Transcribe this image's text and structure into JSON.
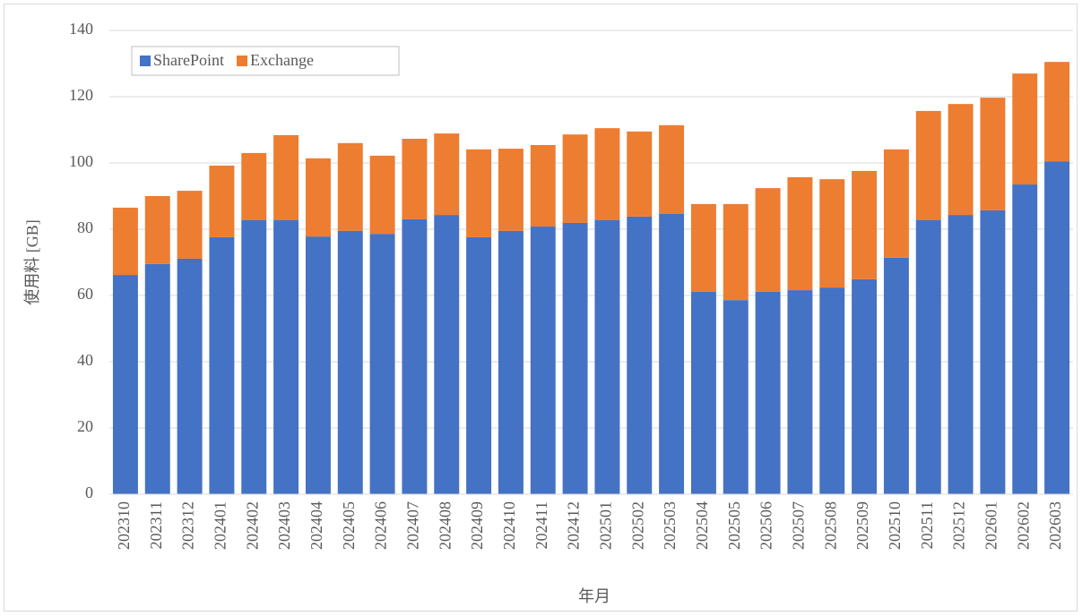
{
  "chart_data": {
    "type": "stacked_bar",
    "x_label": "年月",
    "y_label": "使用料 [GB]",
    "categories": [
      "202310",
      "202311",
      "202312",
      "202401",
      "202402",
      "202403",
      "202404",
      "202405",
      "202406",
      "202407",
      "202408",
      "202409",
      "202410",
      "202411",
      "202412",
      "202501",
      "202502",
      "202503",
      "202504",
      "202505",
      "202506",
      "202507",
      "202508",
      "202509",
      "202510",
      "202511",
      "202512",
      "202601",
      "202602",
      "202603"
    ],
    "series": [
      {
        "name": "SharePoint",
        "color": "#4472c4",
        "values": [
          66.2,
          69.5,
          71.1,
          77.6,
          82.7,
          82.7,
          77.8,
          79.5,
          78.6,
          83.0,
          84.3,
          77.6,
          79.5,
          80.8,
          81.9,
          82.7,
          83.8,
          84.6,
          61.1,
          58.6,
          61.1,
          61.6,
          62.4,
          64.9,
          71.4,
          82.7,
          84.3,
          85.7,
          93.5,
          100.5
        ]
      },
      {
        "name": "Exchange",
        "color": "#ed7d31",
        "values": [
          20.3,
          20.5,
          20.5,
          21.6,
          20.3,
          25.7,
          23.6,
          26.5,
          23.6,
          24.3,
          24.6,
          26.5,
          24.8,
          24.6,
          26.7,
          27.8,
          25.7,
          26.8,
          26.5,
          29.0,
          31.3,
          34.1,
          32.7,
          32.7,
          32.7,
          33.0,
          33.5,
          34.0,
          33.5,
          30.0
        ]
      }
    ],
    "ylim": [
      0,
      140
    ],
    "yticks": [
      0,
      20,
      40,
      60,
      80,
      100,
      120,
      140
    ],
    "grid": true,
    "legend": "top-left"
  }
}
